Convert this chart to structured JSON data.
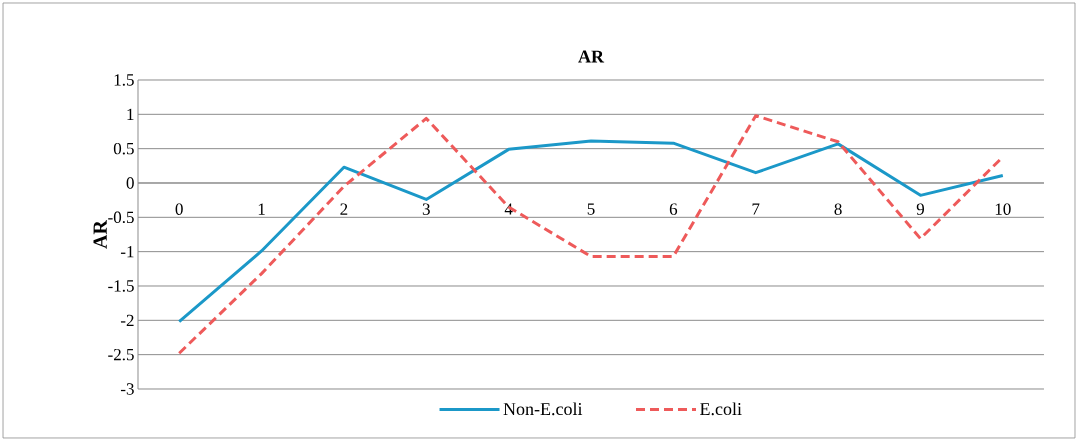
{
  "chart_data": {
    "type": "line",
    "title": "AR",
    "ylabel": "AR",
    "categories": [
      "0",
      "1",
      "2",
      "3",
      "4",
      "5",
      "6",
      "7",
      "8",
      "9",
      "10"
    ],
    "series": [
      {
        "name": "Non-E.coli",
        "color": "#1b98c8",
        "line_style": "solid",
        "values": [
          -2.02,
          -0.99,
          0.23,
          -0.24,
          0.49,
          0.61,
          0.58,
          0.15,
          0.57,
          -0.18,
          0.11
        ]
      },
      {
        "name": "E.coli",
        "color": "#ee5a5a",
        "line_style": "dashed",
        "values": [
          -2.48,
          -1.32,
          -0.05,
          0.94,
          -0.35,
          -1.07,
          -1.07,
          0.98,
          0.6,
          -0.81,
          0.38
        ]
      }
    ],
    "ylim": [
      -3,
      1.5
    ],
    "yticks": [
      -3,
      -2.5,
      -2,
      -1.5,
      -1,
      -0.5,
      0,
      0.5,
      1,
      1.5
    ],
    "grid": "y",
    "legend": "bottom",
    "marker": "none"
  }
}
